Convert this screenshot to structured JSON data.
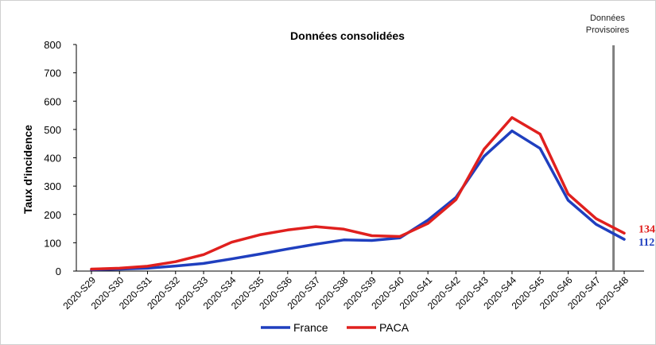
{
  "chart_data": {
    "type": "line",
    "title": "Données consolidées",
    "ylabel": "Taux d'incidence",
    "xlabel": "",
    "ylim": [
      0,
      800
    ],
    "yticks": [
      0,
      100,
      200,
      300,
      400,
      500,
      600,
      700,
      800
    ],
    "categories": [
      "2020-S29",
      "2020-S30",
      "2020-S31",
      "2020-S32",
      "2020-S33",
      "2020-S34",
      "2020-S35",
      "2020-S36",
      "2020-S37",
      "2020-S38",
      "2020-S39",
      "2020-S40",
      "2020-S41",
      "2020-S42",
      "2020-S43",
      "2020-S44",
      "2020-S45",
      "2020-S46",
      "2020-S47",
      "2020-S48"
    ],
    "series": [
      {
        "name": "France",
        "color": "#1f3fbf",
        "values": [
          5,
          7,
          10,
          18,
          27,
          43,
          60,
          78,
          95,
          110,
          108,
          117,
          180,
          260,
          405,
          495,
          433,
          250,
          165,
          112
        ],
        "end_label": "112"
      },
      {
        "name": "PACA",
        "color": "#e0201e",
        "values": [
          7,
          10,
          17,
          33,
          58,
          102,
          128,
          145,
          157,
          148,
          125,
          122,
          168,
          252,
          430,
          542,
          484,
          272,
          185,
          134
        ],
        "end_label": "134"
      }
    ],
    "annotation": {
      "text_line1": "Données",
      "text_line2": "Provisoires",
      "after_category": "2020-S47"
    },
    "grid": false,
    "legend_position": "bottom"
  }
}
